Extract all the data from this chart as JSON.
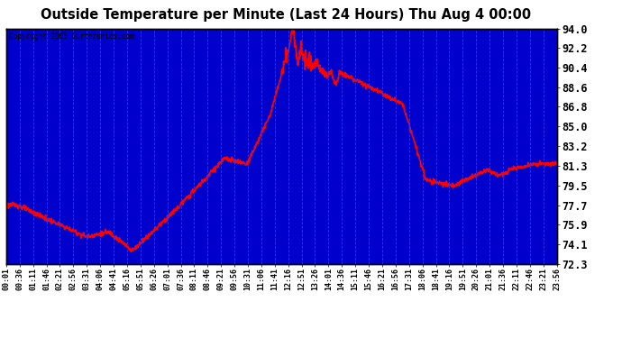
{
  "title": "Outside Temperature per Minute (Last 24 Hours) Thu Aug 4 00:00",
  "copyright": "Copyright 2005 Gurttronics.com",
  "ylim": [
    72.3,
    94.0
  ],
  "yticks": [
    72.3,
    74.1,
    75.9,
    77.7,
    79.5,
    81.3,
    83.2,
    85.0,
    86.8,
    88.6,
    90.4,
    92.2,
    94.0
  ],
  "xtick_labels": [
    "00:01",
    "00:36",
    "01:11",
    "01:46",
    "02:21",
    "02:56",
    "03:31",
    "04:06",
    "04:41",
    "05:16",
    "05:51",
    "06:26",
    "07:01",
    "07:36",
    "08:11",
    "08:46",
    "09:21",
    "09:56",
    "10:31",
    "11:06",
    "11:41",
    "12:16",
    "12:51",
    "13:26",
    "14:01",
    "14:36",
    "15:11",
    "15:46",
    "16:21",
    "16:56",
    "17:31",
    "18:06",
    "18:41",
    "19:16",
    "19:51",
    "20:26",
    "21:01",
    "21:36",
    "22:11",
    "22:46",
    "23:21",
    "23:56"
  ],
  "background_color": "#0000cc",
  "line_color": "#ff0000",
  "grid_color": "#3333ff",
  "line_width": 1.2,
  "figsize": [
    6.9,
    3.75
  ],
  "dpi": 100
}
